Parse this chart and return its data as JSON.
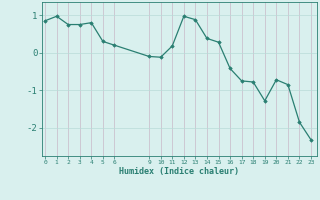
{
  "x": [
    0,
    1,
    2,
    3,
    4,
    5,
    6,
    9,
    10,
    11,
    12,
    13,
    14,
    15,
    16,
    17,
    18,
    19,
    20,
    21,
    22,
    23
  ],
  "y": [
    0.85,
    0.97,
    0.75,
    0.75,
    0.8,
    0.3,
    0.2,
    -0.1,
    -0.12,
    0.18,
    0.97,
    0.88,
    0.38,
    0.28,
    -0.42,
    -0.75,
    -0.78,
    -1.28,
    -0.72,
    -0.85,
    -1.85,
    -2.32
  ],
  "xticks": [
    0,
    1,
    2,
    3,
    4,
    5,
    6,
    9,
    10,
    11,
    12,
    13,
    14,
    15,
    16,
    17,
    18,
    19,
    20,
    21,
    22,
    23
  ],
  "yticks": [
    -2,
    -1,
    0,
    1
  ],
  "ylim": [
    -2.75,
    1.35
  ],
  "xlim": [
    -0.3,
    23.5
  ],
  "xlabel": "Humidex (Indice chaleur)",
  "line_color": "#2a7f72",
  "marker_color": "#2a7f72",
  "bg_color": "#d9f0ee",
  "grid_color": "#b8dbd8",
  "tick_label_color": "#2a7f72",
  "axis_color": "#2a7f72",
  "xlabel_color": "#2a7f72",
  "figsize": [
    3.2,
    2.0
  ],
  "dpi": 100
}
